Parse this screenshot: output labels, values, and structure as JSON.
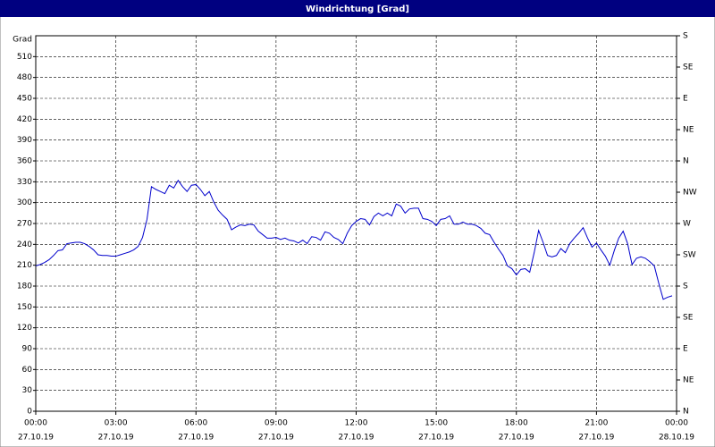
{
  "chart_data": {
    "type": "line",
    "title": "Windrichtung [Grad]",
    "ylabel": "Grad",
    "x": [
      0,
      10,
      20,
      30,
      40,
      50,
      60,
      70,
      80,
      90,
      100,
      110,
      120,
      130,
      140,
      150,
      160,
      170,
      180,
      190,
      200,
      210,
      220,
      230,
      240,
      250,
      260,
      270,
      280,
      290,
      300,
      310,
      320,
      330,
      340,
      350,
      360,
      370,
      380,
      390,
      400,
      410,
      420,
      430,
      440,
      450,
      460,
      470,
      480,
      490,
      500,
      510,
      520,
      530,
      540,
      550,
      560,
      570,
      580,
      590,
      600,
      610,
      620,
      630,
      640,
      650,
      660,
      670,
      680,
      690,
      700,
      710,
      720,
      730,
      740,
      750,
      760,
      770,
      780,
      790,
      800,
      810,
      820,
      830,
      840,
      850,
      860,
      870,
      880,
      890,
      900,
      910,
      920,
      930,
      940,
      950,
      960,
      970,
      980,
      990,
      1000,
      1010,
      1020,
      1030,
      1040,
      1050,
      1060,
      1070,
      1080,
      1090,
      1100,
      1110,
      1120,
      1130,
      1140,
      1150,
      1160,
      1170,
      1180,
      1190,
      1200,
      1210,
      1220,
      1230,
      1240,
      1250,
      1260,
      1270,
      1280,
      1290,
      1300,
      1310,
      1320,
      1330,
      1340,
      1350,
      1360,
      1370,
      1380,
      1390,
      1400,
      1410,
      1420,
      1430
    ],
    "series": [
      {
        "color": "#0000cc",
        "values": [
          209,
          211,
          214,
          218,
          224,
          231,
          232,
          241,
          242,
          243,
          243,
          241,
          237,
          232,
          225,
          224,
          224,
          223,
          223,
          225,
          227,
          229,
          232,
          237,
          250,
          276,
          323,
          319,
          316,
          313,
          325,
          321,
          332,
          323,
          316,
          325,
          326,
          319,
          310,
          316,
          301,
          289,
          282,
          276,
          261,
          265,
          268,
          267,
          269,
          268,
          259,
          254,
          249,
          249,
          250,
          247,
          249,
          246,
          245,
          242,
          246,
          241,
          251,
          250,
          246,
          258,
          256,
          250,
          247,
          241,
          256,
          267,
          273,
          277,
          276,
          268,
          280,
          285,
          281,
          285,
          281,
          298,
          295,
          285,
          291,
          292,
          292,
          277,
          276,
          273,
          267,
          276,
          277,
          281,
          269,
          269,
          272,
          269,
          269,
          267,
          263,
          256,
          254,
          243,
          233,
          224,
          209,
          205,
          196,
          204,
          205,
          200,
          228,
          260,
          243,
          224,
          222,
          224,
          234,
          228,
          241,
          249,
          256,
          264,
          249,
          236,
          242,
          232,
          223,
          210,
          231,
          249,
          259,
          241,
          211,
          220,
          222,
          220,
          215,
          209,
          184,
          161,
          164,
          166
        ]
      }
    ],
    "xlim": [
      0,
      1440
    ],
    "xticks": [
      {
        "value": 0,
        "label": "00:00"
      },
      {
        "value": 180,
        "label": "03:00"
      },
      {
        "value": 360,
        "label": "06:00"
      },
      {
        "value": 540,
        "label": "09:00"
      },
      {
        "value": 720,
        "label": "12:00"
      },
      {
        "value": 900,
        "label": "15:00"
      },
      {
        "value": 1080,
        "label": "18:00"
      },
      {
        "value": 1260,
        "label": "21:00"
      },
      {
        "value": 1440,
        "label": "00:00"
      }
    ],
    "xtick_dates": [
      "27.10.19",
      "27.10.19",
      "27.10.19",
      "27.10.19",
      "27.10.19",
      "27.10.19",
      "27.10.19",
      "27.10.19",
      "28.10.19"
    ],
    "ylim": [
      0,
      540
    ],
    "yticks": [
      0,
      30,
      60,
      90,
      120,
      150,
      180,
      210,
      240,
      270,
      300,
      330,
      360,
      390,
      420,
      450,
      480,
      510
    ],
    "y2lim": [
      0,
      540
    ],
    "y2ticks": [
      {
        "value": 0,
        "label": "N"
      },
      {
        "value": 45,
        "label": "NE"
      },
      {
        "value": 90,
        "label": "E"
      },
      {
        "value": 135,
        "label": "SE"
      },
      {
        "value": 180,
        "label": "S"
      },
      {
        "value": 225,
        "label": "SW"
      },
      {
        "value": 270,
        "label": "W"
      },
      {
        "value": 315,
        "label": "NW"
      },
      {
        "value": 360,
        "label": "N"
      },
      {
        "value": 405,
        "label": "NE"
      },
      {
        "value": 450,
        "label": "E"
      },
      {
        "value": 495,
        "label": "SE"
      },
      {
        "value": 540,
        "label": "S"
      }
    ],
    "grid": true
  }
}
